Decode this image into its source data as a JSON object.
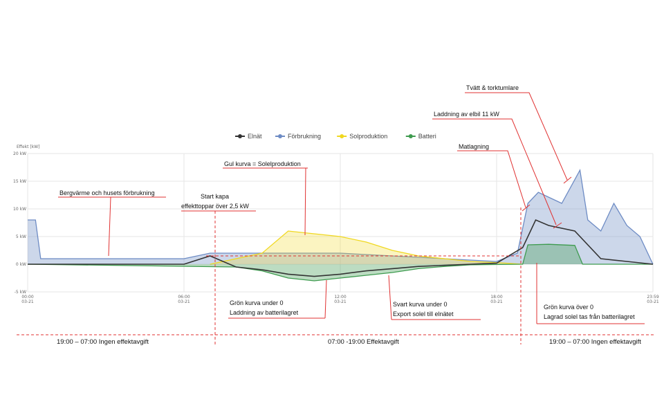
{
  "chart_data": {
    "type": "area",
    "ylabel": "Effekt [kW]",
    "ylim": [
      -5,
      20
    ],
    "y_ticks": [
      "20 kW",
      "15 kW",
      "10 kW",
      "5 kW",
      "0 kW",
      "-5 kW"
    ],
    "x_ticks": [
      {
        "time": "00:00",
        "date": "03-21"
      },
      {
        "time": "06:00",
        "date": "03-21"
      },
      {
        "time": "12:00",
        "date": "03-21"
      },
      {
        "time": "18:00",
        "date": "03-21"
      },
      {
        "time": "23:59",
        "date": "03-21"
      }
    ],
    "legend_position": "top",
    "grid": true,
    "series": [
      {
        "name": "Elnät",
        "color": "#333333",
        "points": [
          [
            0,
            0
          ],
          [
            6,
            0
          ],
          [
            7,
            1.5
          ],
          [
            8,
            -0.5
          ],
          [
            9,
            -1
          ],
          [
            10,
            -1.8
          ],
          [
            11,
            -2.2
          ],
          [
            12,
            -1.8
          ],
          [
            13,
            -1.2
          ],
          [
            14,
            -0.8
          ],
          [
            15,
            -0.4
          ],
          [
            16,
            -0.2
          ],
          [
            17,
            0
          ],
          [
            18,
            0.2
          ],
          [
            19,
            3
          ],
          [
            19.5,
            8
          ],
          [
            20,
            7
          ],
          [
            21,
            6
          ],
          [
            22,
            1
          ],
          [
            23,
            0.5
          ],
          [
            24,
            0
          ]
        ]
      },
      {
        "name": "Förbrukning",
        "color": "#6d8bc4",
        "points": [
          [
            0,
            8
          ],
          [
            0.3,
            8
          ],
          [
            0.5,
            1
          ],
          [
            6,
            1
          ],
          [
            7,
            2
          ],
          [
            12,
            2
          ],
          [
            18,
            0.5
          ],
          [
            18.8,
            2
          ],
          [
            19.2,
            11
          ],
          [
            19.6,
            13
          ],
          [
            20.5,
            11
          ],
          [
            21.2,
            17
          ],
          [
            21.5,
            8
          ],
          [
            22,
            6
          ],
          [
            22.5,
            11
          ],
          [
            23,
            7
          ],
          [
            23.5,
            5
          ],
          [
            24,
            0
          ]
        ]
      },
      {
        "name": "Solproduktion",
        "color": "#f0d820",
        "points": [
          [
            7,
            0
          ],
          [
            8,
            1
          ],
          [
            9,
            2
          ],
          [
            10,
            6
          ],
          [
            11,
            5.5
          ],
          [
            12,
            5
          ],
          [
            13,
            4
          ],
          [
            14,
            2.5
          ],
          [
            15,
            1.5
          ],
          [
            16,
            1
          ],
          [
            17,
            0.5
          ],
          [
            18,
            0.3
          ],
          [
            19,
            0
          ]
        ]
      },
      {
        "name": "Batteri",
        "color": "#3e9b4f",
        "points": [
          [
            0,
            0
          ],
          [
            8,
            -0.5
          ],
          [
            9,
            -1.2
          ],
          [
            10,
            -2.5
          ],
          [
            11,
            -3
          ],
          [
            12,
            -2.5
          ],
          [
            13,
            -2
          ],
          [
            14,
            -1.5
          ],
          [
            15,
            -0.8
          ],
          [
            16,
            -0.4
          ],
          [
            17,
            -0.1
          ],
          [
            19,
            0
          ],
          [
            19.2,
            3.5
          ],
          [
            20,
            3.6
          ],
          [
            21,
            3.4
          ],
          [
            21.3,
            0
          ],
          [
            24,
            0
          ]
        ]
      }
    ],
    "annotations": [
      "Bergvärme och husets förbrukning",
      "Start kapa",
      "effekttoppar över 2,5 kW",
      "Gul kurva = Solelproduktion",
      "Grön kurva under 0",
      "Laddning av batterilagret",
      "Svart kurva under 0",
      "Export solel till elnätet",
      "Matlagning",
      "Laddning av elbil 11 kW",
      "Tvätt & torktumlare",
      "Grön kurva över 0",
      "Lagrad solel tas från batterilagret"
    ],
    "footer": [
      "19:00 – 07:00 Ingen effektavgift",
      "07:00 -19:00 Effektavgift",
      "19:00 – 07:00 Ingen effektavgift"
    ]
  }
}
